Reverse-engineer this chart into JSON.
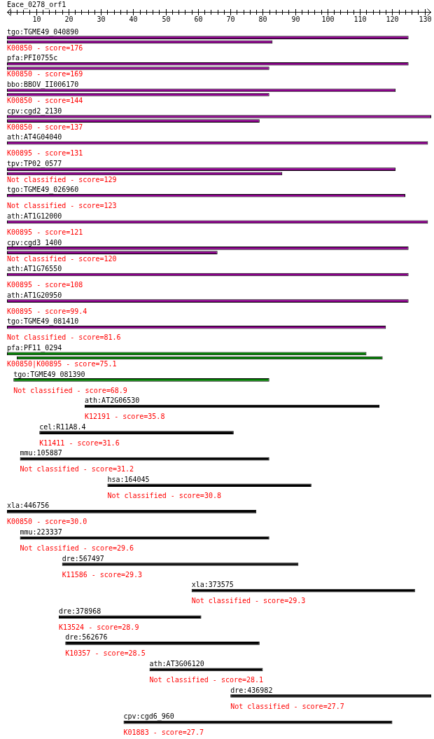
{
  "chart_data": {
    "type": "bar",
    "orientation": "horizontal",
    "title": "Eace_0278_orf1",
    "categories": [
      "tgo:TGME49_040890",
      "pfa:PFI0755c",
      "bbo:BBOV_II006170",
      "cpv:cgd2_2130",
      "ath:AT4G04040",
      "tpv:TP02_0577",
      "tgo:TGME49_026960",
      "ath:AT1G12000",
      "cpv:cgd3_1400",
      "ath:AT1G76550",
      "ath:AT1G20950",
      "tgo:TGME49_081410",
      "pfa:PF11_0294",
      "tgo:TGME49_081390",
      "ath:AT2G06530",
      "cel:R11A8.4",
      "mmu:105887",
      "hsa:164045",
      "xla:446756",
      "mmu:223337",
      "dre:567497",
      "xla:373575",
      "dre:378968",
      "dre:562676",
      "ath:AT3G06120",
      "dre:436982",
      "cpv:cgd6_960"
    ],
    "series": [
      {
        "colors": [
          "#8b008b",
          "#8b008b",
          "#8b008b",
          "#8b008b",
          "#8b008b",
          "#8b008b",
          "#8b008b",
          "#8b008b",
          "#8b008b",
          "#8b008b",
          "#8b008b",
          "#8b008b",
          "#008000",
          "#008000",
          "#000000",
          "#000000",
          "#000000",
          "#000000",
          "#000000",
          "#000000",
          "#000000",
          "#000000",
          "#000000",
          "#000000",
          "#000000",
          "#000000",
          "#000000"
        ],
        "base": [
          1,
          1,
          1,
          1,
          1,
          1,
          1,
          1,
          1,
          1,
          1,
          1,
          1,
          3,
          25,
          11,
          5,
          32,
          1,
          5,
          18,
          58,
          17,
          19,
          45,
          70,
          37
        ],
        "values": [
          124,
          124,
          120,
          131,
          130,
          120,
          123,
          130,
          124,
          124,
          124,
          117,
          111,
          79,
          91,
          60,
          77,
          63,
          77,
          77,
          73,
          69,
          44,
          60,
          35,
          62,
          83
        ]
      },
      {
        "colors": [
          "#8b008b",
          "#8b008b",
          "#8b008b",
          "#8b008b",
          "#8b008b",
          "#8b008b",
          "#8b008b",
          "#8b008b",
          "#8b008b",
          "#8b008b",
          "#8b008b",
          "#8b008b",
          "#008000",
          "#008000",
          "#000000",
          "#000000",
          "#000000",
          "#000000",
          "#000000",
          "#000000",
          "#000000",
          "#000000",
          "#000000",
          "#000000",
          "#000000",
          "#000000",
          "#000000"
        ],
        "base": [
          1,
          1,
          1,
          1,
          null,
          1,
          null,
          null,
          1,
          null,
          null,
          null,
          4,
          null,
          null,
          null,
          null,
          null,
          null,
          null,
          null,
          null,
          null,
          null,
          null,
          null,
          null
        ],
        "values": [
          82,
          81,
          81,
          78,
          null,
          85,
          null,
          null,
          65,
          null,
          null,
          null,
          113,
          null,
          null,
          null,
          null,
          null,
          null,
          null,
          null,
          null,
          null,
          null,
          null,
          null,
          null
        ]
      }
    ],
    "xlim": [
      1,
      132
    ],
    "xticks": [
      {
        "value": 2,
        "label": null
      },
      {
        "value": 4,
        "label": null
      },
      {
        "value": 6,
        "label": null
      },
      {
        "value": 8,
        "label": null
      },
      10,
      {
        "value": 12,
        "label": null
      },
      {
        "value": 14,
        "label": null
      },
      {
        "value": 16,
        "label": null
      },
      {
        "value": 18,
        "label": null
      },
      20,
      {
        "value": 22,
        "label": null
      },
      {
        "value": 24,
        "label": null
      },
      {
        "value": 26,
        "label": null
      },
      {
        "value": 28,
        "label": null
      },
      30,
      {
        "value": 32,
        "label": null
      },
      {
        "value": 34,
        "label": null
      },
      {
        "value": 36,
        "label": null
      },
      {
        "value": 38,
        "label": null
      },
      40,
      {
        "value": 42,
        "label": null
      },
      {
        "value": 44,
        "label": null
      },
      {
        "value": 46,
        "label": null
      },
      {
        "value": 48,
        "label": null
      },
      50,
      {
        "value": 52,
        "label": null
      },
      {
        "value": 54,
        "label": null
      },
      {
        "value": 56,
        "label": null
      },
      {
        "value": 58,
        "label": null
      },
      60,
      {
        "value": 62,
        "label": null
      },
      {
        "value": 64,
        "label": null
      },
      {
        "value": 66,
        "label": null
      },
      {
        "value": 68,
        "label": null
      },
      70,
      {
        "value": 72,
        "label": null
      },
      {
        "value": 74,
        "label": null
      },
      {
        "value": 76,
        "label": null
      },
      {
        "value": 78,
        "label": null
      },
      80,
      {
        "value": 82,
        "label": null
      },
      {
        "value": 84,
        "label": null
      },
      {
        "value": 86,
        "label": null
      },
      {
        "value": 88,
        "label": null
      },
      90,
      {
        "value": 92,
        "label": null
      },
      {
        "value": 94,
        "label": null
      },
      {
        "value": 96,
        "label": null
      },
      {
        "value": 98,
        "label": null
      },
      100,
      {
        "value": 102,
        "label": null
      },
      {
        "value": 104,
        "label": null
      },
      {
        "value": 106,
        "label": null
      },
      {
        "value": 108,
        "label": null
      },
      110,
      {
        "value": 112,
        "label": null
      },
      {
        "value": 114,
        "label": null
      },
      {
        "value": 116,
        "label": null
      },
      {
        "value": 118,
        "label": null
      },
      120,
      {
        "value": 122,
        "label": null
      },
      {
        "value": 124,
        "label": null
      },
      {
        "value": 126,
        "label": null
      },
      {
        "value": 128,
        "label": null
      },
      130
    ],
    "annotations": [
      "K00850 - score=176",
      "K00850 - score=169",
      "K00850 - score=144",
      "K00850 - score=137",
      "K00895 - score=131",
      "Not classified - score=129",
      "Not classified - score=123",
      "K00895 - score=121",
      "Not classified - score=120",
      "K00895 - score=108",
      "K00895 - score=99.4",
      "Not classified - score=81.6",
      "K00850|K00895 - score=75.1",
      "Not classified - score=68.9",
      "K12191 - score=35.8",
      "K11411 - score=31.6",
      "Not classified - score=31.2",
      "Not classified - score=30.8",
      "K00850 - score=30.0",
      "Not classified - score=29.6",
      "K11586 - score=29.3",
      "Not classified - score=29.3",
      "K13524 - score=28.9",
      "K10357 - score=28.5",
      "Not classified - score=28.1",
      "Not classified - score=27.7",
      "K01883 - score=27.7"
    ]
  }
}
